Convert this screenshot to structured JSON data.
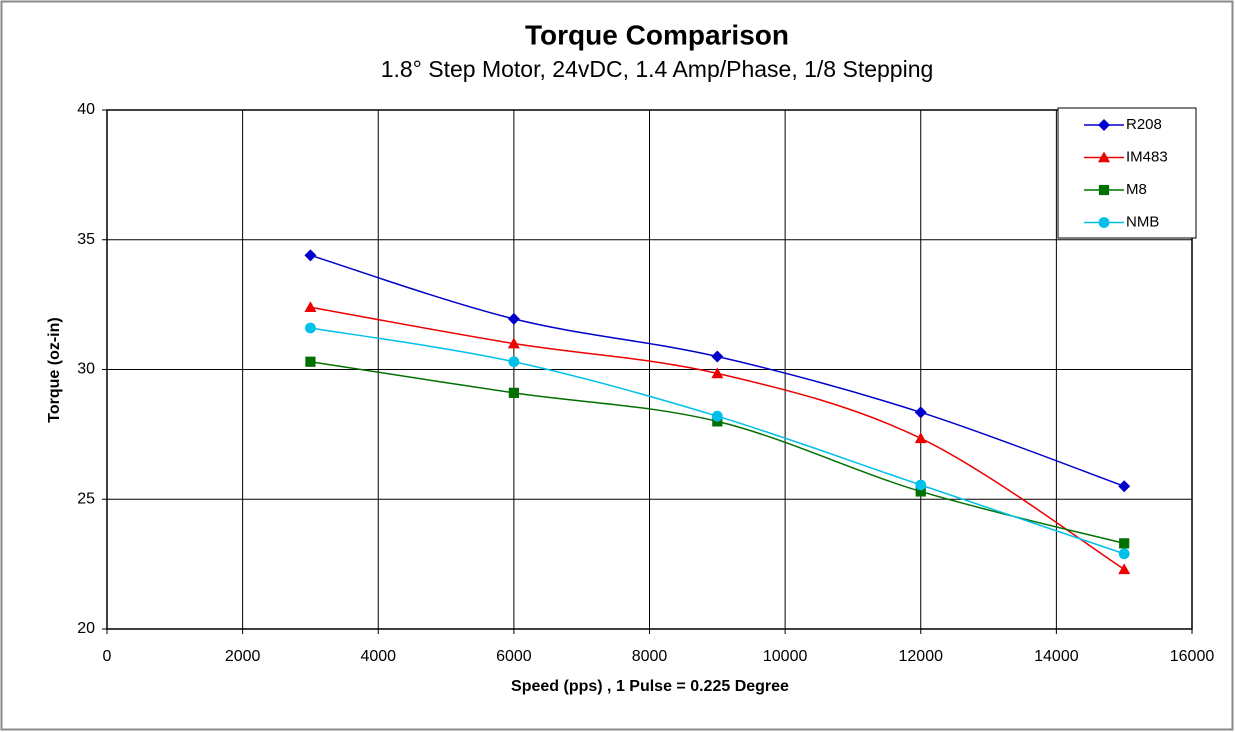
{
  "chart_data": {
    "type": "line",
    "title": "Torque Comparison",
    "subtitle": "1.8° Step Motor, 24vDC, 1.4 Amp/Phase, 1/8 Stepping",
    "x_label": "Speed (pps) , 1 Pulse = 0.225 Degree",
    "y_label": "Torque (oz-in)",
    "x": [
      3000,
      6000,
      9000,
      12000,
      15000
    ],
    "series": [
      {
        "name": "R208",
        "color": "#0000cc",
        "marker": "diamond",
        "values": [
          34.4,
          31.95,
          30.5,
          28.35,
          25.5
        ]
      },
      {
        "name": "IM483",
        "color": "#ee0000",
        "marker": "triangle",
        "values": [
          32.4,
          31.0,
          29.85,
          27.35,
          22.3
        ]
      },
      {
        "name": "M8",
        "color": "#007000",
        "marker": "square",
        "values": [
          30.3,
          29.1,
          28.0,
          25.3,
          23.3
        ]
      },
      {
        "name": "NMB",
        "color": "#00c0ea",
        "marker": "circle",
        "values": [
          31.6,
          30.3,
          28.2,
          25.55,
          22.9
        ]
      }
    ],
    "xlim": [
      0,
      16000
    ],
    "xticks": [
      0,
      2000,
      4000,
      6000,
      8000,
      10000,
      12000,
      14000,
      16000
    ],
    "ylim": [
      20,
      40
    ],
    "yticks": [
      20,
      25,
      30,
      35,
      40
    ],
    "grid": true,
    "smooth": true,
    "legend": "top-right"
  }
}
